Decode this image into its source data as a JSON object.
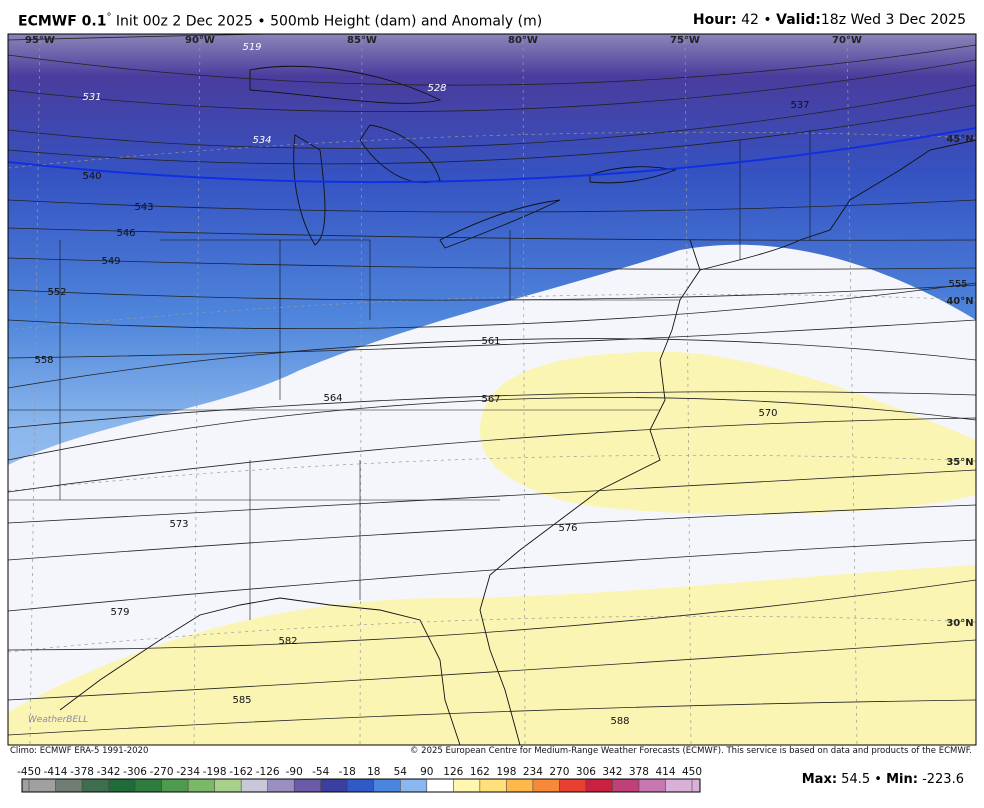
{
  "header": {
    "model": "ECMWF 0.1",
    "degree": "°",
    "init": "Init 00z 2 Dec 2025",
    "separator": "•",
    "field": "500mb Height (dam) and Anomaly (m)",
    "hour_label": "Hour:",
    "hour": 42,
    "valid_label": "Valid:",
    "valid": "18z Wed 3 Dec 2025"
  },
  "map": {
    "longitudes": [
      "95°W",
      "90°W",
      "85°W",
      "80°W",
      "75°W",
      "70°W"
    ],
    "latitudes": [
      "45°N",
      "40°N",
      "35°N",
      "30°N"
    ],
    "contours": [
      519,
      528,
      531,
      534,
      537,
      540,
      543,
      546,
      549,
      552,
      555,
      558,
      561,
      564,
      567,
      570,
      573,
      576,
      579,
      582,
      585,
      588
    ],
    "logo": "WeatherBELL"
  },
  "footer": {
    "climo": "Climo: ECMWF ERA-5 1991-2020",
    "copyright": "© 2025 European Centre for Medium-Range Weather Forecasts (ECMWF). This service is based on data and products of the ECMWF."
  },
  "colorbar": {
    "ticks": [
      -450,
      -414,
      -378,
      -342,
      -306,
      -270,
      -234,
      -198,
      -162,
      -126,
      -90,
      -54,
      -18,
      18,
      54,
      90,
      126,
      162,
      198,
      234,
      270,
      306,
      342,
      378,
      414,
      450
    ],
    "colors": [
      "#a0a0a0",
      "#707d73",
      "#3f6e4f",
      "#1f6b3a",
      "#2e7d3e",
      "#4e9a4e",
      "#7cb86a",
      "#a8d08a",
      "#c8c8d8",
      "#9a8fc0",
      "#6a5aa8",
      "#3b3fa0",
      "#2f5bc8",
      "#4a86e0",
      "#8ab8ee",
      "#ffffff",
      "#fff6b0",
      "#ffe07a",
      "#ffb84a",
      "#f8883a",
      "#e84030",
      "#cc2040",
      "#c0407a",
      "#c878b0",
      "#d8b0d8"
    ]
  },
  "stats": {
    "max_label": "Max:",
    "max": 54.5,
    "separator": "•",
    "min_label": "Min:",
    "min": -223.6
  }
}
